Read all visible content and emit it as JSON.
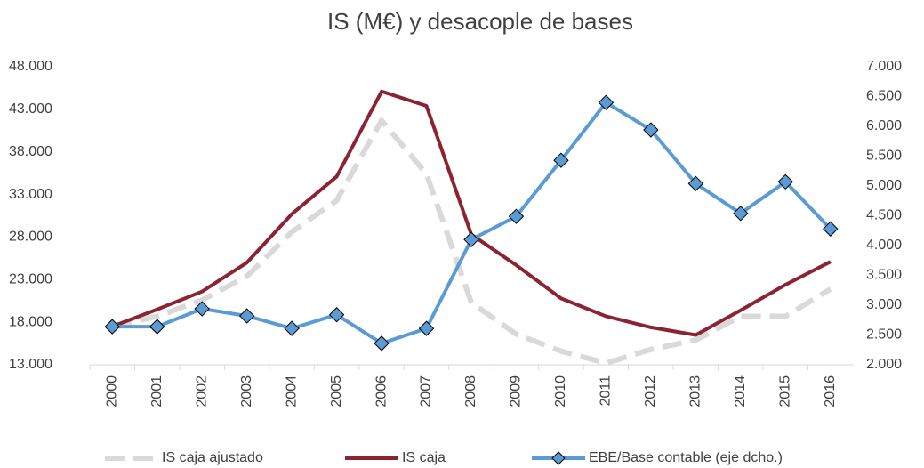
{
  "chart_data": {
    "type": "line",
    "title": "IS (M€) y desacople de bases",
    "categories": [
      "2000",
      "2001",
      "2002",
      "2003",
      "2004",
      "2005",
      "2006",
      "2007",
      "2008",
      "2009",
      "2010",
      "2011",
      "2012",
      "2013",
      "2014",
      "2015",
      "2016"
    ],
    "series": [
      {
        "name": "IS caja ajustado",
        "color": "#d9d9d9",
        "dash": true,
        "values": [
          17500,
          18700,
          20600,
          23400,
          28600,
          32300,
          41700,
          35400,
          20300,
          16600,
          14600,
          13200,
          14800,
          15900,
          18700,
          18700,
          21900
        ]
      },
      {
        "name": "IS caja",
        "color": "#8b2331",
        "values": [
          17500,
          19500,
          21600,
          25000,
          30700,
          35100,
          45100,
          43400,
          28300,
          24700,
          20800,
          18700,
          17400,
          16500,
          19400,
          22400,
          25100
        ]
      },
      {
        "name": "EBE/Base contable (eje dcho.)",
        "color": "#5b9bd5",
        "axis": "y2",
        "marker": "diamond",
        "values": [
          2640,
          2640,
          2940,
          2820,
          2610,
          2840,
          2360,
          2610,
          4100,
          4490,
          5430,
          6400,
          5940,
          5040,
          4540,
          5070,
          4280
        ]
      }
    ],
    "ylim": [
      13000,
      48000
    ],
    "yticks": [
      {
        "value": 13000,
        "label": "13.000"
      },
      {
        "value": 18000,
        "label": "18.000"
      },
      {
        "value": 23000,
        "label": "23.000"
      },
      {
        "value": 28000,
        "label": "28.000"
      },
      {
        "value": 33000,
        "label": "33.000"
      },
      {
        "value": 38000,
        "label": "38.000"
      },
      {
        "value": 43000,
        "label": "43.000"
      },
      {
        "value": 48000,
        "label": "48.000"
      }
    ],
    "y2lim": [
      2000,
      7000
    ],
    "y2ticks": [
      {
        "value": 2000,
        "label": "2.000"
      },
      {
        "value": 2500,
        "label": "2.500"
      },
      {
        "value": 3000,
        "label": "3.000"
      },
      {
        "value": 3500,
        "label": "3.500"
      },
      {
        "value": 4000,
        "label": "4.000"
      },
      {
        "value": 4500,
        "label": "4.500"
      },
      {
        "value": 5000,
        "label": "5.000"
      },
      {
        "value": 5500,
        "label": "5.500"
      },
      {
        "value": 6000,
        "label": "6.000"
      },
      {
        "value": 6500,
        "label": "6.500"
      },
      {
        "value": 7000,
        "label": "7.000"
      }
    ],
    "legend": "bottom"
  }
}
